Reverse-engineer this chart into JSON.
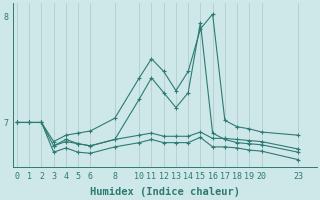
{
  "xlabel": "Humidex (Indice chaleur)",
  "background_color": "#cee8ea",
  "line_color": "#2d7a72",
  "grid_color": "#b8d0d2",
  "xticks": [
    0,
    1,
    2,
    3,
    4,
    5,
    6,
    8,
    10,
    11,
    12,
    13,
    14,
    15,
    16,
    17,
    18,
    19,
    20,
    23
  ],
  "xlim": [
    -0.3,
    24.5
  ],
  "ylim": [
    6.58,
    8.12
  ],
  "yticks": [
    7,
    8
  ],
  "line1_x": [
    0,
    1,
    2,
    3,
    4,
    5,
    6,
    8,
    10,
    11,
    12,
    13,
    14,
    15,
    16,
    17,
    18,
    19,
    20,
    23
  ],
  "line1_y": [
    7.0,
    7.0,
    7.0,
    6.82,
    6.88,
    6.9,
    6.92,
    7.04,
    7.42,
    7.6,
    7.48,
    7.3,
    7.48,
    7.88,
    8.02,
    7.02,
    6.96,
    6.94,
    6.91,
    6.88
  ],
  "line2_x": [
    0,
    1,
    2,
    3,
    4,
    5,
    6,
    8,
    10,
    11,
    12,
    13,
    14,
    15,
    16,
    17,
    18,
    19,
    20,
    23
  ],
  "line2_y": [
    7.0,
    7.0,
    7.0,
    6.78,
    6.82,
    6.8,
    6.78,
    6.84,
    6.88,
    6.9,
    6.87,
    6.87,
    6.87,
    6.91,
    6.85,
    6.85,
    6.84,
    6.83,
    6.82,
    6.75
  ],
  "line3_x": [
    0,
    1,
    2,
    3,
    4,
    5,
    6,
    8,
    10,
    11,
    12,
    13,
    14,
    15,
    16,
    17,
    18,
    19,
    20,
    23
  ],
  "line3_y": [
    7.0,
    7.0,
    7.0,
    6.72,
    6.76,
    6.72,
    6.71,
    6.77,
    6.81,
    6.84,
    6.81,
    6.81,
    6.81,
    6.86,
    6.77,
    6.77,
    6.76,
    6.74,
    6.73,
    6.65
  ],
  "line4_x": [
    3,
    4,
    5,
    6,
    8,
    10,
    11,
    12,
    13,
    14,
    15,
    16,
    17,
    18,
    19,
    20,
    23
  ],
  "line4_y": [
    6.78,
    6.84,
    6.8,
    6.78,
    6.84,
    7.22,
    7.42,
    7.28,
    7.14,
    7.28,
    7.94,
    6.9,
    6.84,
    6.81,
    6.8,
    6.79,
    6.72
  ]
}
